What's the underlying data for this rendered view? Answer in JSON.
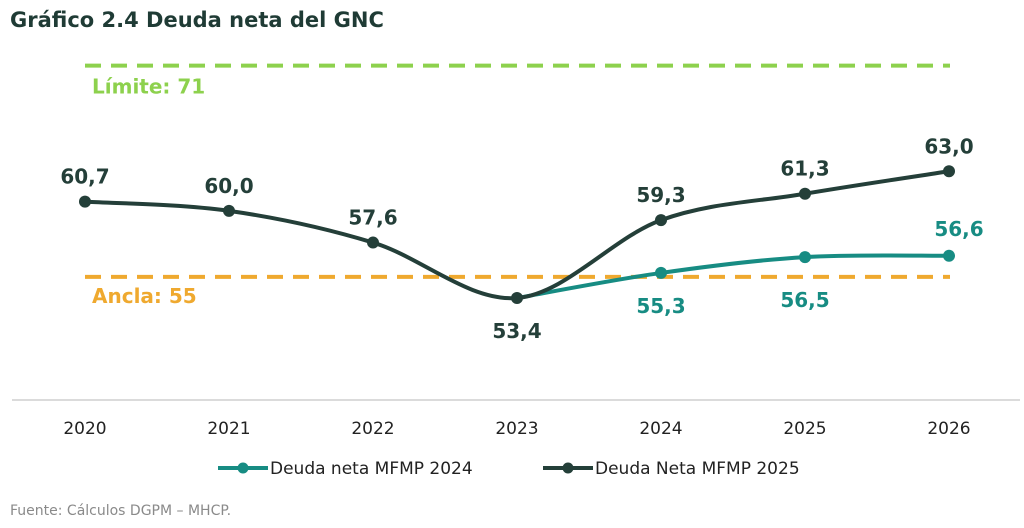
{
  "chart_data": {
    "type": "line",
    "title": "Gráfico 2.4 Deuda neta del GNC",
    "categories": [
      "2020",
      "2021",
      "2022",
      "2023",
      "2024",
      "2025",
      "2026"
    ],
    "ylim": [
      45,
      75
    ],
    "grid": false,
    "legend_position": "bottom",
    "series": [
      {
        "name": "Deuda neta MFMP 2024",
        "color": "#178c83",
        "values": [
          null,
          null,
          null,
          53.4,
          55.3,
          56.5,
          56.6
        ],
        "labels": [
          "",
          "",
          "",
          "",
          "55,3",
          "56,5",
          "56,6"
        ]
      },
      {
        "name": "Deuda Neta MFMP 2025",
        "color": "#243f39",
        "values": [
          60.7,
          60.0,
          57.6,
          53.4,
          59.3,
          61.3,
          63.0
        ],
        "labels": [
          "60,7",
          "60,0",
          "57,6",
          "53,4",
          "59,3",
          "61,3",
          "63,0"
        ]
      }
    ],
    "reference_lines": [
      {
        "label": "Límite: 71",
        "value": 71,
        "color": "#8dd14d"
      },
      {
        "label": "Ancla: 55",
        "value": 55,
        "color": "#efa92f"
      }
    ]
  },
  "source": "Fuente: Cálculos DGPM – MHCP."
}
